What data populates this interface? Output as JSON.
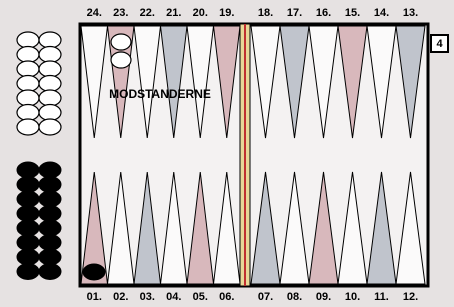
{
  "top_points": [
    "24.",
    "23.",
    "22.",
    "21.",
    "20.",
    "19.",
    "18.",
    "17.",
    "16.",
    "15.",
    "14.",
    "13."
  ],
  "bottom_points": [
    "01.",
    "02.",
    "03.",
    "04.",
    "05.",
    "06.",
    "07.",
    "08.",
    "09.",
    "10.",
    "11.",
    "12."
  ],
  "board_label": "MODSTANDERNE",
  "cube": "4"
}
